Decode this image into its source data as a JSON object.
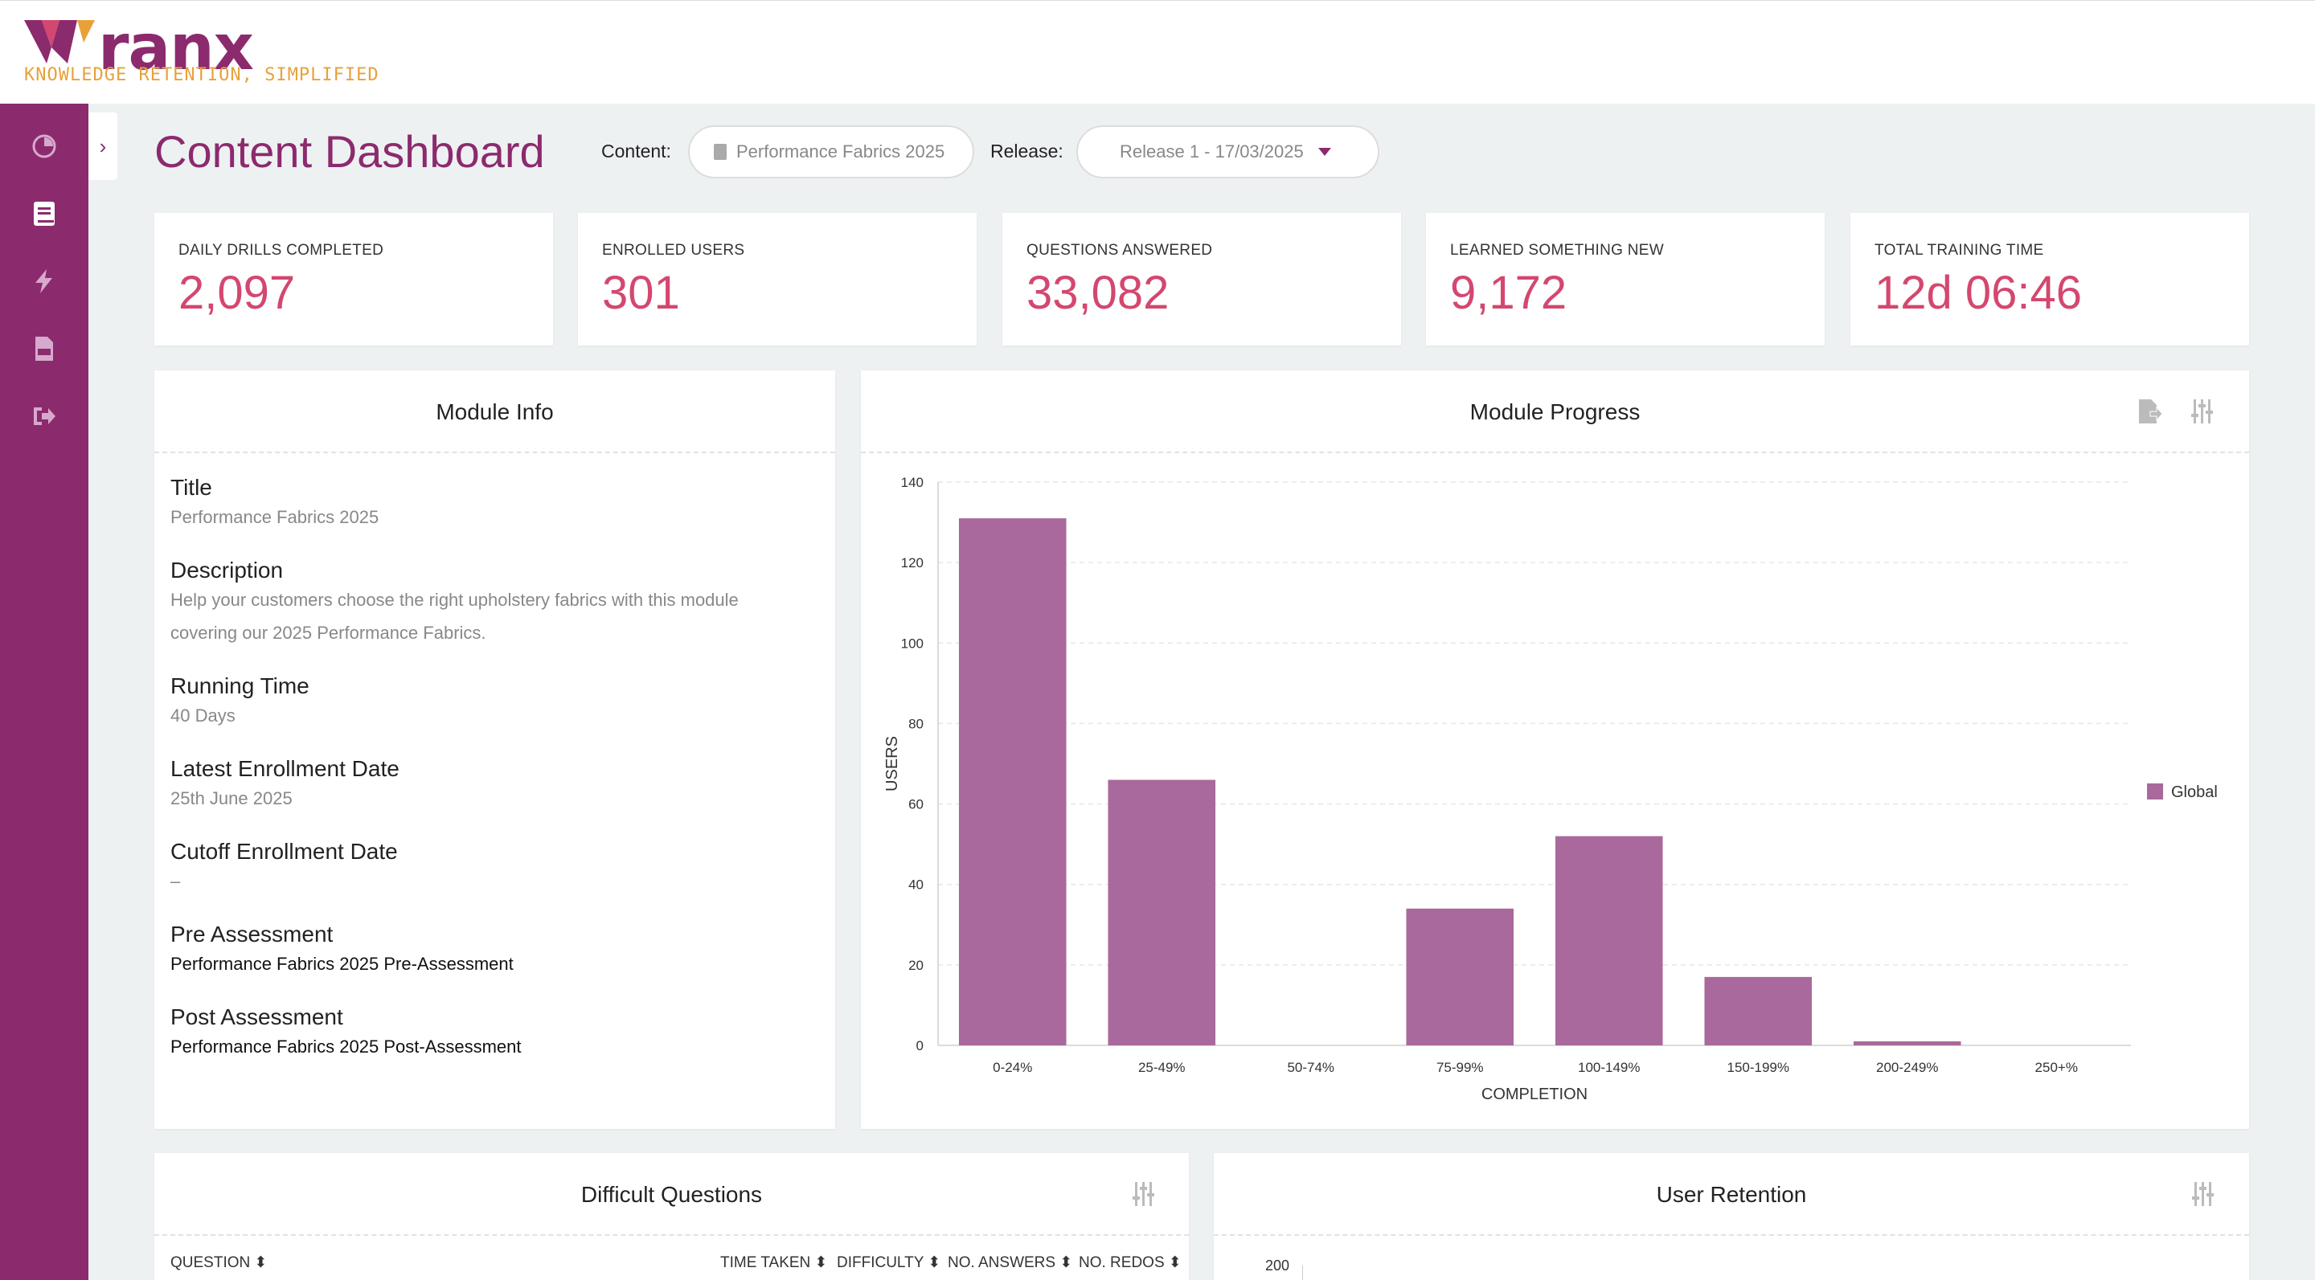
{
  "brand": {
    "word": "ranx",
    "tagline": "KNOWLEDGE RETENTION, SIMPLIFIED"
  },
  "page": {
    "title": "Content Dashboard"
  },
  "filters": {
    "content_label": "Content:",
    "content_value": "Performance Fabrics 2025",
    "release_label": "Release:",
    "release_value": "Release 1 - 17/03/2025"
  },
  "stats": [
    {
      "label": "DAILY DRILLS COMPLETED",
      "value": "2,097"
    },
    {
      "label": "ENROLLED USERS",
      "value": "301"
    },
    {
      "label": "QUESTIONS ANSWERED",
      "value": "33,082"
    },
    {
      "label": "LEARNED SOMETHING NEW",
      "value": "9,172"
    },
    {
      "label": "TOTAL TRAINING TIME",
      "value": "12d 06:46"
    }
  ],
  "module_info": {
    "heading": "Module Info",
    "fields": [
      {
        "title": "Title",
        "value": "Performance Fabrics 2025"
      },
      {
        "title": "Description",
        "value": "Help your customers choose the right upholstery fabrics with this module covering our 2025 Performance Fabrics."
      },
      {
        "title": "Running Time",
        "value": "40 Days"
      },
      {
        "title": "Latest Enrollment Date",
        "value": "25th June 2025"
      },
      {
        "title": "Cutoff Enrollment Date",
        "value": "–"
      },
      {
        "title": "Pre Assessment",
        "value": "Performance Fabrics 2025 Pre-Assessment"
      },
      {
        "title": "Post Assessment",
        "value": "Performance Fabrics 2025 Post-Assessment"
      }
    ]
  },
  "module_progress": {
    "heading": "Module Progress"
  },
  "difficult_questions": {
    "heading": "Difficult Questions",
    "columns": [
      "QUESTION",
      "TIME TAKEN",
      "DIFFICULTY",
      "NO. ANSWERS",
      "NO. REDOS"
    ]
  },
  "user_retention": {
    "heading": "User Retention",
    "first_tick": "200"
  },
  "colors": {
    "brand": "#8c2a6e",
    "accent": "#d4476f",
    "bar": "#a9699c"
  },
  "chart_data": {
    "type": "bar",
    "categories": [
      "0-24%",
      "25-49%",
      "50-74%",
      "75-99%",
      "100-149%",
      "150-199%",
      "200-249%",
      "250+%"
    ],
    "series": [
      {
        "name": "Global",
        "values": [
          131,
          66,
          0,
          34,
          52,
          17,
          1,
          0
        ]
      }
    ],
    "xlabel": "COMPLETION",
    "ylabel": "USERS",
    "ylim": [
      0,
      140
    ],
    "yticks": [
      0,
      20,
      40,
      60,
      80,
      100,
      120,
      140
    ],
    "grid": true,
    "legend": "right"
  }
}
